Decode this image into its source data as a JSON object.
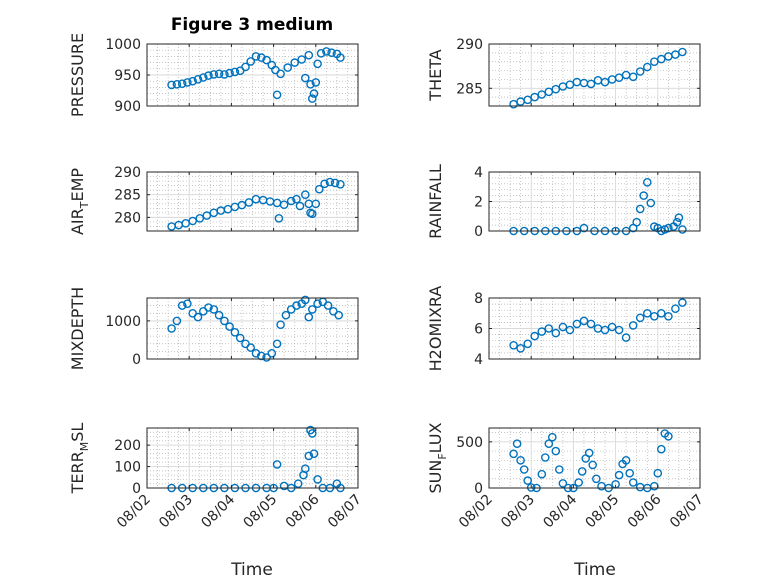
{
  "figure": {
    "title": "Figure 3 medium",
    "xlabel": "Time"
  },
  "style": {
    "marker_color": "#0072BD",
    "axis_color": "#262626",
    "grid_color": "#b0b0b0"
  },
  "chart_data": [
    {
      "type": "scatter",
      "ylabel_main": "PRESSURE",
      "ylabel_sub": "",
      "xlim": [
        "08/02",
        "08/07"
      ],
      "ylim": [
        900,
        1000
      ],
      "yticks": [
        "900",
        "950",
        "1000"
      ],
      "yticks_values": [
        900,
        950,
        1000
      ],
      "xticks": [
        "08/02",
        "08/03",
        "08/04",
        "08/05",
        "08/06",
        "08/07"
      ],
      "show_xticklabels": false,
      "grid": true,
      "minor_grid": true,
      "points": [
        [
          "08/02 14:00",
          934
        ],
        [
          "08/02 17:00",
          935
        ],
        [
          "08/02 20:00",
          936
        ],
        [
          "08/02 23:00",
          938
        ],
        [
          "08/03 02:00",
          940
        ],
        [
          "08/03 05:00",
          943
        ],
        [
          "08/03 08:00",
          946
        ],
        [
          "08/03 11:00",
          949
        ],
        [
          "08/03 14:00",
          951
        ],
        [
          "08/03 17:00",
          952
        ],
        [
          "08/03 20:00",
          951
        ],
        [
          "08/03 23:00",
          953
        ],
        [
          "08/04 02:00",
          955
        ],
        [
          "08/04 05:00",
          957
        ],
        [
          "08/04 08:00",
          963
        ],
        [
          "08/04 11:00",
          972
        ],
        [
          "08/04 14:00",
          980
        ],
        [
          "08/04 17:00",
          978
        ],
        [
          "08/04 20:00",
          974
        ],
        [
          "08/04 23:00",
          966
        ],
        [
          "08/05 01:00",
          958
        ],
        [
          "08/05 02:00",
          918
        ],
        [
          "08/05 04:00",
          952
        ],
        [
          "08/05 08:00",
          962
        ],
        [
          "08/05 12:00",
          970
        ],
        [
          "08/05 16:00",
          975
        ],
        [
          "08/05 18:00",
          945
        ],
        [
          "08/05 20:00",
          982
        ],
        [
          "08/05 21:00",
          935
        ],
        [
          "08/05 22:00",
          912
        ],
        [
          "08/05 23:00",
          920
        ],
        [
          "08/06 00:00",
          938
        ],
        [
          "08/06 01:00",
          968
        ],
        [
          "08/06 03:00",
          985
        ],
        [
          "08/06 06:00",
          988
        ],
        [
          "08/06 09:00",
          986
        ],
        [
          "08/06 12:00",
          984
        ],
        [
          "08/06 14:00",
          978
        ]
      ]
    },
    {
      "type": "scatter",
      "ylabel_main": "THETA",
      "ylabel_sub": "",
      "xlim": [
        "08/02",
        "08/07"
      ],
      "ylim": [
        283,
        290
      ],
      "yticks": [
        "285",
        "290"
      ],
      "yticks_values": [
        285,
        290
      ],
      "xticks": [
        "08/02",
        "08/03",
        "08/04",
        "08/05",
        "08/06",
        "08/07"
      ],
      "show_xticklabels": false,
      "grid": true,
      "minor_grid": true,
      "points": [
        [
          "08/02 14:00",
          283.2
        ],
        [
          "08/02 18:00",
          283.5
        ],
        [
          "08/02 22:00",
          283.7
        ],
        [
          "08/03 02:00",
          284.0
        ],
        [
          "08/03 06:00",
          284.3
        ],
        [
          "08/03 10:00",
          284.6
        ],
        [
          "08/03 14:00",
          284.9
        ],
        [
          "08/03 18:00",
          285.2
        ],
        [
          "08/03 22:00",
          285.4
        ],
        [
          "08/04 02:00",
          285.7
        ],
        [
          "08/04 06:00",
          285.6
        ],
        [
          "08/04 10:00",
          285.5
        ],
        [
          "08/04 14:00",
          285.9
        ],
        [
          "08/04 18:00",
          285.7
        ],
        [
          "08/04 22:00",
          286.0
        ],
        [
          "08/05 02:00",
          286.2
        ],
        [
          "08/05 06:00",
          286.5
        ],
        [
          "08/05 10:00",
          286.3
        ],
        [
          "08/05 14:00",
          286.9
        ],
        [
          "08/05 18:00",
          287.4
        ],
        [
          "08/05 22:00",
          288.0
        ],
        [
          "08/06 02:00",
          288.3
        ],
        [
          "08/06 06:00",
          288.6
        ],
        [
          "08/06 10:00",
          288.8
        ],
        [
          "08/06 14:00",
          289.1
        ]
      ]
    },
    {
      "type": "scatter",
      "ylabel_main": "AIR",
      "ylabel_sub": "T",
      "ylabel_rest": "EMP",
      "xlim": [
        "08/02",
        "08/07"
      ],
      "ylim": [
        277,
        290
      ],
      "yticks": [
        "280",
        "285",
        "290"
      ],
      "yticks_values": [
        280,
        285,
        290
      ],
      "xticks": [
        "08/02",
        "08/03",
        "08/04",
        "08/05",
        "08/06",
        "08/07"
      ],
      "show_xticklabels": false,
      "grid": true,
      "minor_grid": true,
      "points": [
        [
          "08/02 14:00",
          278.0
        ],
        [
          "08/02 18:00",
          278.3
        ],
        [
          "08/02 22:00",
          278.7
        ],
        [
          "08/03 02:00",
          279.2
        ],
        [
          "08/03 06:00",
          279.8
        ],
        [
          "08/03 10:00",
          280.4
        ],
        [
          "08/03 14:00",
          281.0
        ],
        [
          "08/03 18:00",
          281.5
        ],
        [
          "08/03 22:00",
          281.8
        ],
        [
          "08/04 02:00",
          282.3
        ],
        [
          "08/04 06:00",
          282.7
        ],
        [
          "08/04 10:00",
          283.3
        ],
        [
          "08/04 14:00",
          284.0
        ],
        [
          "08/04 18:00",
          283.8
        ],
        [
          "08/04 22:00",
          283.5
        ],
        [
          "08/05 02:00",
          283.2
        ],
        [
          "08/05 03:00",
          279.8
        ],
        [
          "08/05 06:00",
          282.8
        ],
        [
          "08/05 10:00",
          283.6
        ],
        [
          "08/05 13:00",
          284.0
        ],
        [
          "08/05 15:00",
          282.5
        ],
        [
          "08/05 18:00",
          285.0
        ],
        [
          "08/05 20:00",
          283.0
        ],
        [
          "08/05 21:00",
          281.0
        ],
        [
          "08/05 22:00",
          280.8
        ],
        [
          "08/06 00:00",
          283.0
        ],
        [
          "08/06 02:00",
          286.2
        ],
        [
          "08/06 05:00",
          287.4
        ],
        [
          "08/06 08:00",
          287.8
        ],
        [
          "08/06 11:00",
          287.6
        ],
        [
          "08/06 14:00",
          287.3
        ]
      ]
    },
    {
      "type": "scatter",
      "ylabel_main": "RAINFALL",
      "ylabel_sub": "",
      "xlim": [
        "08/02",
        "08/07"
      ],
      "ylim": [
        0,
        4
      ],
      "yticks": [
        "0",
        "2",
        "4"
      ],
      "yticks_values": [
        0,
        2,
        4
      ],
      "xticks": [
        "08/02",
        "08/03",
        "08/04",
        "08/05",
        "08/06",
        "08/07"
      ],
      "show_xticklabels": false,
      "grid": true,
      "minor_grid": true,
      "points": [
        [
          "08/02 14:00",
          0
        ],
        [
          "08/02 20:00",
          0
        ],
        [
          "08/03 02:00",
          0
        ],
        [
          "08/03 08:00",
          0
        ],
        [
          "08/03 14:00",
          0
        ],
        [
          "08/03 20:00",
          0
        ],
        [
          "08/04 02:00",
          0
        ],
        [
          "08/04 06:00",
          0.2
        ],
        [
          "08/04 12:00",
          0
        ],
        [
          "08/04 18:00",
          0
        ],
        [
          "08/05 00:00",
          0
        ],
        [
          "08/05 06:00",
          0
        ],
        [
          "08/05 10:00",
          0.2
        ],
        [
          "08/05 12:00",
          0.6
        ],
        [
          "08/05 14:00",
          1.5
        ],
        [
          "08/05 16:00",
          2.4
        ],
        [
          "08/05 18:00",
          3.3
        ],
        [
          "08/05 20:00",
          1.9
        ],
        [
          "08/05 22:00",
          0.3
        ],
        [
          "08/06 00:00",
          0.2
        ],
        [
          "08/06 02:00",
          0
        ],
        [
          "08/06 04:00",
          0.1
        ],
        [
          "08/06 06:00",
          0.2
        ],
        [
          "08/06 09:00",
          0.3
        ],
        [
          "08/06 11:00",
          0.6
        ],
        [
          "08/06 12:00",
          0.9
        ],
        [
          "08/06 14:00",
          0.1
        ]
      ]
    },
    {
      "type": "scatter",
      "ylabel_main": "MIXDEPTH",
      "ylabel_sub": "",
      "xlim": [
        "08/02",
        "08/07"
      ],
      "ylim": [
        0,
        1600
      ],
      "yticks": [
        "0",
        "1000"
      ],
      "yticks_values": [
        0,
        1000
      ],
      "xticks": [
        "08/02",
        "08/03",
        "08/04",
        "08/05",
        "08/06",
        "08/07"
      ],
      "show_xticklabels": false,
      "grid": true,
      "minor_grid": true,
      "points": [
        [
          "08/02 14:00",
          800
        ],
        [
          "08/02 17:00",
          1000
        ],
        [
          "08/02 20:00",
          1400
        ],
        [
          "08/02 23:00",
          1450
        ],
        [
          "08/03 02:00",
          1200
        ],
        [
          "08/03 05:00",
          1100
        ],
        [
          "08/03 08:00",
          1250
        ],
        [
          "08/03 11:00",
          1350
        ],
        [
          "08/03 14:00",
          1300
        ],
        [
          "08/03 17:00",
          1150
        ],
        [
          "08/03 20:00",
          1000
        ],
        [
          "08/03 23:00",
          850
        ],
        [
          "08/04 02:00",
          700
        ],
        [
          "08/04 05:00",
          550
        ],
        [
          "08/04 08:00",
          400
        ],
        [
          "08/04 11:00",
          300
        ],
        [
          "08/04 14:00",
          150
        ],
        [
          "08/04 17:00",
          80
        ],
        [
          "08/04 20:00",
          40
        ],
        [
          "08/04 23:00",
          150
        ],
        [
          "08/05 02:00",
          400
        ],
        [
          "08/05 04:00",
          900
        ],
        [
          "08/05 07:00",
          1150
        ],
        [
          "08/05 10:00",
          1300
        ],
        [
          "08/05 13:00",
          1400
        ],
        [
          "08/05 16:00",
          1450
        ],
        [
          "08/05 18:00",
          1550
        ],
        [
          "08/05 20:00",
          1100
        ],
        [
          "08/05 22:00",
          1300
        ],
        [
          "08/06 01:00",
          1450
        ],
        [
          "08/06 04:00",
          1500
        ],
        [
          "08/06 07:00",
          1400
        ],
        [
          "08/06 10:00",
          1250
        ],
        [
          "08/06 13:00",
          1150
        ]
      ]
    },
    {
      "type": "scatter",
      "ylabel_main": "H2OMIXRA",
      "ylabel_sub": "",
      "xlim": [
        "08/02",
        "08/07"
      ],
      "ylim": [
        4,
        8
      ],
      "yticks": [
        "4",
        "6",
        "8"
      ],
      "yticks_values": [
        4,
        6,
        8
      ],
      "xticks": [
        "08/02",
        "08/03",
        "08/04",
        "08/05",
        "08/06",
        "08/07"
      ],
      "show_xticklabels": false,
      "grid": true,
      "minor_grid": true,
      "points": [
        [
          "08/02 14:00",
          4.9
        ],
        [
          "08/02 18:00",
          4.7
        ],
        [
          "08/02 22:00",
          5.0
        ],
        [
          "08/03 02:00",
          5.5
        ],
        [
          "08/03 06:00",
          5.8
        ],
        [
          "08/03 10:00",
          6.0
        ],
        [
          "08/03 14:00",
          5.7
        ],
        [
          "08/03 18:00",
          6.1
        ],
        [
          "08/03 22:00",
          5.9
        ],
        [
          "08/04 02:00",
          6.3
        ],
        [
          "08/04 06:00",
          6.5
        ],
        [
          "08/04 10:00",
          6.3
        ],
        [
          "08/04 14:00",
          6.0
        ],
        [
          "08/04 18:00",
          5.9
        ],
        [
          "08/04 22:00",
          6.1
        ],
        [
          "08/05 02:00",
          5.9
        ],
        [
          "08/05 06:00",
          5.4
        ],
        [
          "08/05 10:00",
          6.2
        ],
        [
          "08/05 14:00",
          6.7
        ],
        [
          "08/05 18:00",
          7.0
        ],
        [
          "08/05 22:00",
          6.8
        ],
        [
          "08/06 02:00",
          7.0
        ],
        [
          "08/06 06:00",
          6.8
        ],
        [
          "08/06 10:00",
          7.3
        ],
        [
          "08/06 14:00",
          7.7
        ]
      ]
    },
    {
      "type": "scatter",
      "ylabel_main": "TERR",
      "ylabel_sub": "M",
      "ylabel_rest": "SL",
      "xlim": [
        "08/02",
        "08/07"
      ],
      "ylim": [
        0,
        280
      ],
      "yticks": [
        "0",
        "100",
        "200"
      ],
      "yticks_values": [
        0,
        100,
        200
      ],
      "xticks": [
        "08/02",
        "08/03",
        "08/04",
        "08/05",
        "08/06",
        "08/07"
      ],
      "show_xticklabels": true,
      "grid": true,
      "minor_grid": true,
      "points": [
        [
          "08/02 14:00",
          0
        ],
        [
          "08/02 20:00",
          0
        ],
        [
          "08/03 02:00",
          0
        ],
        [
          "08/03 08:00",
          0
        ],
        [
          "08/03 14:00",
          0
        ],
        [
          "08/03 20:00",
          0
        ],
        [
          "08/04 02:00",
          0
        ],
        [
          "08/04 08:00",
          0
        ],
        [
          "08/04 14:00",
          0
        ],
        [
          "08/04 20:00",
          0
        ],
        [
          "08/05 00:00",
          0
        ],
        [
          "08/05 02:00",
          110
        ],
        [
          "08/05 06:00",
          10
        ],
        [
          "08/05 10:00",
          0
        ],
        [
          "08/05 14:00",
          20
        ],
        [
          "08/05 17:00",
          60
        ],
        [
          "08/05 18:00",
          90
        ],
        [
          "08/05 20:00",
          150
        ],
        [
          "08/05 21:00",
          270
        ],
        [
          "08/05 22:00",
          255
        ],
        [
          "08/05 23:00",
          160
        ],
        [
          "08/06 01:00",
          40
        ],
        [
          "08/06 04:00",
          0
        ],
        [
          "08/06 08:00",
          0
        ],
        [
          "08/06 12:00",
          20
        ],
        [
          "08/06 14:00",
          0
        ]
      ]
    },
    {
      "type": "scatter",
      "ylabel_main": "SUN",
      "ylabel_sub": "F",
      "ylabel_rest": "LUX",
      "xlim": [
        "08/02",
        "08/07"
      ],
      "ylim": [
        0,
        650
      ],
      "yticks": [
        "0",
        "500"
      ],
      "yticks_values": [
        0,
        500
      ],
      "xticks": [
        "08/02",
        "08/03",
        "08/04",
        "08/05",
        "08/06",
        "08/07"
      ],
      "show_xticklabels": true,
      "grid": true,
      "minor_grid": true,
      "points": [
        [
          "08/02 14:00",
          370
        ],
        [
          "08/02 16:00",
          480
        ],
        [
          "08/02 18:00",
          300
        ],
        [
          "08/02 20:00",
          200
        ],
        [
          "08/02 22:00",
          80
        ],
        [
          "08/03 00:00",
          5
        ],
        [
          "08/03 03:00",
          0
        ],
        [
          "08/03 06:00",
          150
        ],
        [
          "08/03 08:00",
          330
        ],
        [
          "08/03 10:00",
          480
        ],
        [
          "08/03 12:00",
          550
        ],
        [
          "08/03 14:00",
          400
        ],
        [
          "08/03 16:00",
          200
        ],
        [
          "08/03 18:00",
          50
        ],
        [
          "08/03 21:00",
          0
        ],
        [
          "08/04 00:00",
          0
        ],
        [
          "08/04 03:00",
          60
        ],
        [
          "08/04 05:00",
          180
        ],
        [
          "08/04 07:00",
          320
        ],
        [
          "08/04 09:00",
          380
        ],
        [
          "08/04 11:00",
          250
        ],
        [
          "08/04 13:00",
          100
        ],
        [
          "08/04 16:00",
          20
        ],
        [
          "08/04 20:00",
          0
        ],
        [
          "08/05 00:00",
          40
        ],
        [
          "08/05 02:00",
          140
        ],
        [
          "08/05 04:00",
          260
        ],
        [
          "08/05 06:00",
          300
        ],
        [
          "08/05 08:00",
          160
        ],
        [
          "08/05 10:00",
          60
        ],
        [
          "08/05 14:00",
          10
        ],
        [
          "08/05 18:00",
          0
        ],
        [
          "08/05 22:00",
          20
        ],
        [
          "08/06 00:00",
          160
        ],
        [
          "08/06 02:00",
          420
        ],
        [
          "08/06 04:00",
          590
        ],
        [
          "08/06 06:00",
          560
        ]
      ]
    }
  ]
}
